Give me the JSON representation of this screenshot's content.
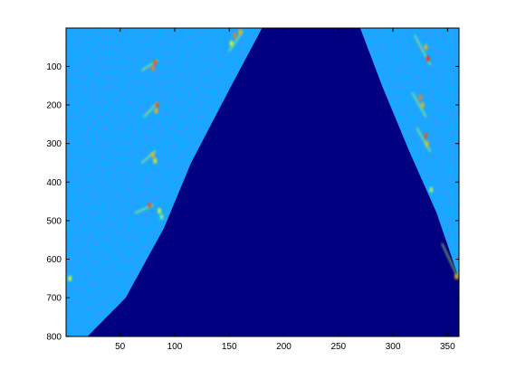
{
  "chart_data": {
    "type": "heatmap",
    "colormap": "jet",
    "background_color": "#000080",
    "title": "",
    "xlabel": "",
    "ylabel": "",
    "xlim": [
      0.5,
      360.5
    ],
    "ylim": [
      0.5,
      800.5
    ],
    "y_direction": "reversed",
    "grid": false,
    "x_ticks": [
      50,
      100,
      150,
      200,
      250,
      300,
      350
    ],
    "x_tick_labels": [
      "50",
      "100",
      "150",
      "200",
      "250",
      "300",
      "350"
    ],
    "y_ticks": [
      100,
      200,
      300,
      400,
      500,
      600,
      700,
      800
    ],
    "y_tick_labels": [
      "100",
      "200",
      "300",
      "400",
      "500",
      "600",
      "700",
      "800"
    ],
    "bands": [
      {
        "name": "",
        "description_visual": "left noisy wedge",
        "left_edge_points": [
          [
            0.5,
            0.5
          ],
          [
            0.5,
            800.5
          ]
        ],
        "right_edge_points": [
          [
            180,
            0.5
          ],
          [
            150,
            160
          ],
          [
            115,
            350
          ],
          [
            90,
            520
          ],
          [
            55,
            700
          ],
          [
            20,
            800.5
          ]
        ],
        "intensity": 0.35
      },
      {
        "name": "",
        "description_visual": "right noisy wedge",
        "left_edge_points": [
          [
            270,
            0.5
          ],
          [
            290,
            150
          ],
          [
            315,
            320
          ],
          [
            340,
            480
          ],
          [
            360.5,
            650
          ]
        ],
        "right_edge_points": [
          [
            360.5,
            0.5
          ],
          [
            360.5,
            650
          ]
        ],
        "intensity": 0.35
      }
    ],
    "bright_spots": [
      [
        155,
        20,
        0.75
      ],
      [
        160,
        10,
        0.7
      ],
      [
        152,
        40,
        0.6
      ],
      [
        82,
        90,
        0.8
      ],
      [
        80,
        105,
        0.75
      ],
      [
        84,
        200,
        0.8
      ],
      [
        83,
        215,
        0.7
      ],
      [
        80,
        330,
        0.7
      ],
      [
        82,
        345,
        0.65
      ],
      [
        77,
        460,
        0.8
      ],
      [
        86,
        475,
        0.6
      ],
      [
        88,
        490,
        0.5
      ],
      [
        4,
        650,
        0.6
      ],
      [
        330,
        50,
        0.7
      ],
      [
        332,
        80,
        0.85
      ],
      [
        325,
        180,
        0.75
      ],
      [
        327,
        200,
        0.7
      ],
      [
        330,
        280,
        0.8
      ],
      [
        331,
        300,
        0.7
      ],
      [
        335,
        420,
        0.55
      ],
      [
        358,
        645,
        0.7
      ]
    ],
    "bright_streaks": [
      [
        [
          150,
          60
        ],
        [
          162,
          10
        ]
      ],
      [
        [
          70,
          110
        ],
        [
          84,
          85
        ]
      ],
      [
        [
          72,
          230
        ],
        [
          84,
          195
        ]
      ],
      [
        [
          70,
          350
        ],
        [
          82,
          320
        ]
      ],
      [
        [
          64,
          480
        ],
        [
          80,
          460
        ]
      ],
      [
        [
          320,
          20
        ],
        [
          334,
          95
        ]
      ],
      [
        [
          318,
          170
        ],
        [
          330,
          230
        ]
      ],
      [
        [
          322,
          260
        ],
        [
          334,
          320
        ]
      ],
      [
        [
          345,
          560
        ],
        [
          360,
          650
        ]
      ]
    ]
  }
}
